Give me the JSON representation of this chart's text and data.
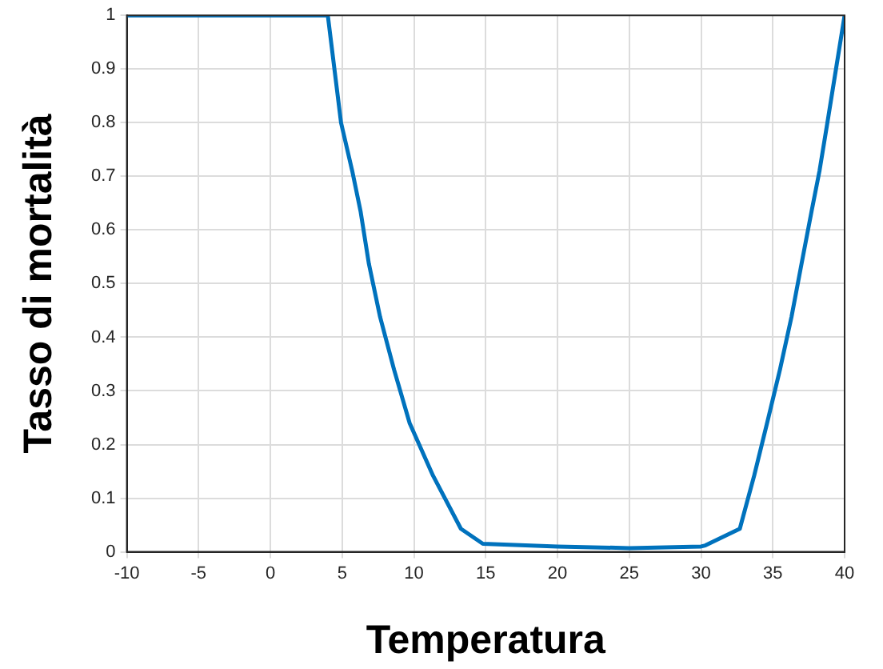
{
  "chart_data": {
    "type": "line",
    "xlabel": "Temperatura",
    "ylabel": "Tasso di mortalità",
    "x": [
      -10,
      4,
      4.92,
      5.7,
      6.28,
      6.86,
      7.64,
      8.61,
      9.7,
      11.33,
      13.27,
      14.8,
      20,
      25,
      30,
      30.3,
      32.7,
      33.7,
      34.6,
      35.5,
      36.3,
      37,
      37.7,
      38.25,
      38.8,
      39.4,
      40
    ],
    "series": [
      {
        "color": "#0072bd",
        "values": [
          1,
          1,
          0.8,
          0.71,
          0.635,
          0.537,
          0.438,
          0.34,
          0.24,
          0.142,
          0.043,
          0.015,
          0.01,
          0.007,
          0.01,
          0.012,
          0.043,
          0.142,
          0.24,
          0.34,
          0.438,
          0.537,
          0.635,
          0.71,
          0.8,
          0.9,
          1
        ]
      }
    ],
    "xlim": [
      -10,
      40
    ],
    "xticks": [
      -10,
      -5,
      0,
      5,
      10,
      15,
      20,
      25,
      30,
      35,
      40
    ],
    "ylim": [
      0,
      1
    ],
    "yticks": [
      0,
      0.1,
      0.2,
      0.3,
      0.4,
      0.5,
      0.6,
      0.7,
      0.8,
      0.9,
      1
    ],
    "grid": true,
    "marker": "none",
    "line_style": "solid",
    "legend": false
  }
}
